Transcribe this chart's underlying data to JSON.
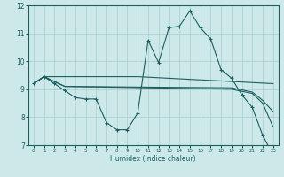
{
  "xlabel": "Humidex (Indice chaleur)",
  "xlim": [
    -0.5,
    23.5
  ],
  "ylim": [
    7,
    12
  ],
  "xticks": [
    0,
    1,
    2,
    3,
    4,
    5,
    6,
    7,
    8,
    9,
    10,
    11,
    12,
    13,
    14,
    15,
    16,
    17,
    18,
    19,
    20,
    21,
    22,
    23
  ],
  "yticks": [
    7,
    8,
    9,
    10,
    11,
    12
  ],
  "bg_color": "#cde8e8",
  "grid_color": "#aacece",
  "line_color": "#1a6060",
  "line1_x": [
    0,
    1,
    2,
    3,
    4,
    5,
    6,
    7,
    8,
    9,
    10,
    11,
    12,
    13,
    14,
    15,
    16,
    17,
    18,
    19,
    20,
    21,
    22,
    23
  ],
  "line1_y": [
    9.2,
    9.45,
    9.2,
    8.95,
    8.7,
    8.65,
    8.65,
    7.8,
    7.55,
    7.55,
    8.15,
    10.75,
    9.95,
    11.2,
    11.25,
    11.8,
    11.2,
    10.8,
    9.7,
    9.4,
    8.8,
    8.35,
    7.35,
    6.65
  ],
  "line2_x": [
    0,
    1,
    10,
    23
  ],
  "line2_y": [
    9.2,
    9.45,
    9.45,
    9.2
  ],
  "line3_x": [
    0,
    1,
    3,
    19,
    21,
    22,
    23
  ],
  "line3_y": [
    9.2,
    9.45,
    9.1,
    9.0,
    8.85,
    8.5,
    7.65
  ],
  "line4_x": [
    0,
    1,
    3,
    19,
    21,
    22,
    23
  ],
  "line4_y": [
    9.2,
    9.45,
    9.1,
    9.05,
    8.9,
    8.6,
    8.2
  ]
}
